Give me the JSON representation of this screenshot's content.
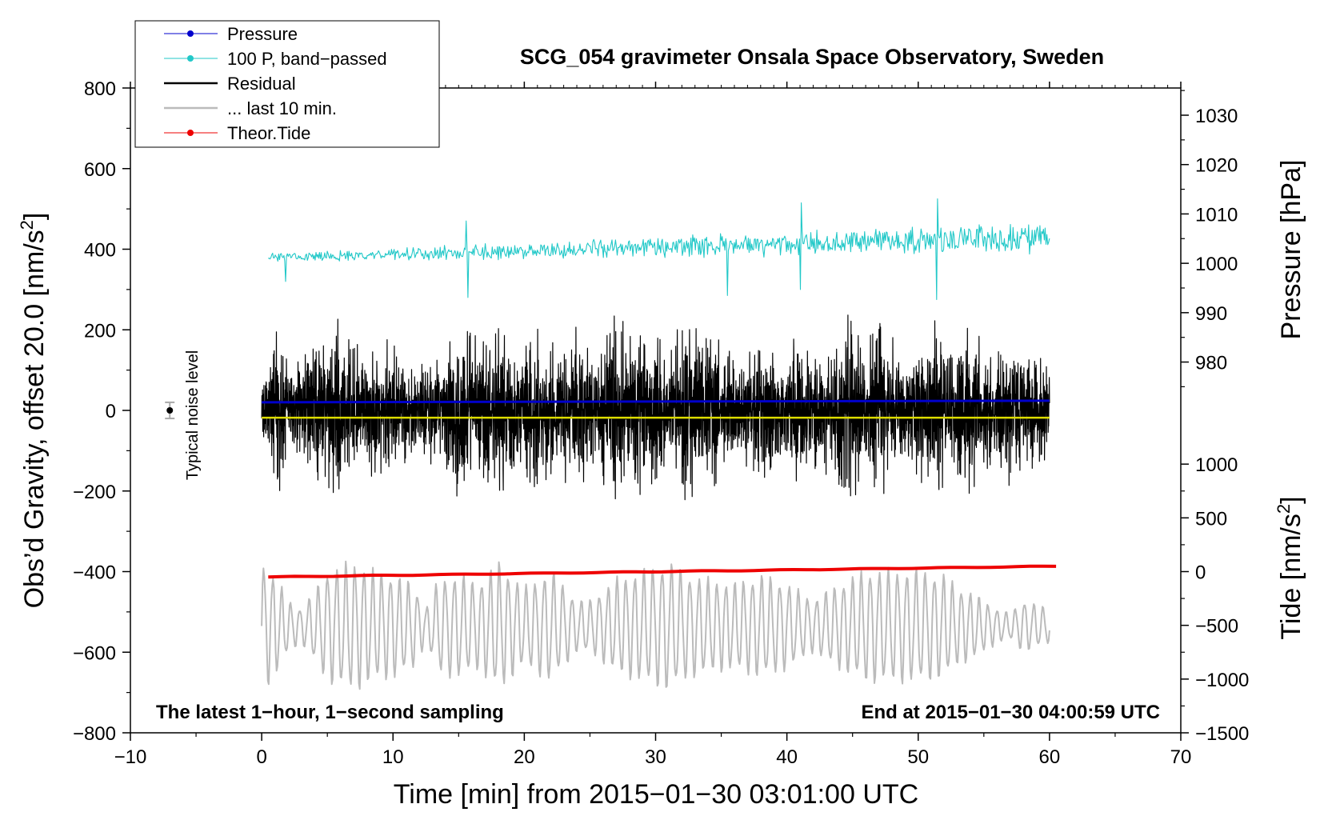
{
  "chart_data": {
    "type": "line",
    "title": "SCG_054 gravimeter Onsala Space Observatory, Sweden",
    "xlabel": "Time [min] from 2015−01−30 03:01:00 UTC",
    "ylabel_left": "Obs’d Gravity, offset 20.0 [nm/s",
    "ylabel_left_sup": "2",
    "ylabel_left_end": "]",
    "ylabel_pressure": "Pressure [hPa]",
    "ylabel_tide": "Tide [nm/s",
    "ylabel_tide_sup": "2",
    "ylabel_tide_end": "]",
    "xlim": [
      -10,
      70
    ],
    "ylim": [
      -800,
      800
    ],
    "x_ticks": [
      -10,
      0,
      10,
      20,
      30,
      40,
      50,
      60,
      70
    ],
    "x_tick_labels": [
      "−10",
      "0",
      "10",
      "20",
      "30",
      "40",
      "50",
      "60",
      "70"
    ],
    "y_ticks": [
      -800,
      -600,
      -400,
      -200,
      0,
      200,
      400,
      600,
      800
    ],
    "y_tick_labels": [
      "−800",
      "−600",
      "−400",
      "−200",
      "0",
      "200",
      "400",
      "600",
      "800"
    ],
    "pressure_ticks": [
      980,
      990,
      1000,
      1010,
      1020,
      1030
    ],
    "pressure_tick_labels": [
      "980",
      "990",
      "1000",
      "1010",
      "1020",
      "1030"
    ],
    "pressure_axis_gravity_equiv": {
      "p1000_at": 365,
      "per_hpa": 12.25
    },
    "tide_ticks": [
      -1500,
      -1000,
      -500,
      0,
      500,
      1000
    ],
    "tide_tick_labels": [
      "−1500",
      "−1000",
      "−500",
      "0",
      "500",
      "1000"
    ],
    "tide_axis_gravity_equiv": {
      "zero_at": -400,
      "per_unit": 0.2667
    },
    "annotations": {
      "bottom_left": "The latest 1−hour, 1−second sampling",
      "bottom_right": "End at 2015−01−30 04:00:59 UTC",
      "noise_label": "Typical noise level"
    },
    "noise_bar": {
      "x": -7,
      "y": 0,
      "err": 20
    },
    "legend": {
      "position": "top-left",
      "entries": [
        {
          "label": "Pressure",
          "color": "#0000cc",
          "marker": true
        },
        {
          "label": "100 P, band−passed",
          "color": "#22c8c8",
          "marker": true
        },
        {
          "label": "Residual",
          "color": "#000000",
          "marker": false
        },
        {
          "label": "... last 10 min.",
          "color": "#bbbbbb",
          "marker": false
        },
        {
          "label": "Theor.Tide",
          "color": "#ee0000",
          "marker": true
        }
      ]
    },
    "series": [
      {
        "name": "Pressure",
        "color": "#0000cc",
        "x_range": [
          0,
          60
        ],
        "y_start": 20,
        "y_end": 24
      },
      {
        "name": "Residual mean",
        "color": "#dddd00",
        "x_range": [
          0,
          60
        ],
        "y_start": -18,
        "y_end": -18
      },
      {
        "name": "100 P, band−passed",
        "color": "#22c8c8",
        "x_range": [
          0.5,
          60
        ],
        "baseline_start": 380,
        "baseline_end": 430,
        "amplitude_start": 12,
        "amplitude_end": 45,
        "spikes": [
          {
            "x": 15.7,
            "y": 280
          },
          {
            "x": 15.6,
            "y": 470
          },
          {
            "x": 35.5,
            "y": 285
          },
          {
            "x": 41.1,
            "y": 515
          },
          {
            "x": 41.0,
            "y": 300
          },
          {
            "x": 51.4,
            "y": 275
          },
          {
            "x": 51.5,
            "y": 525
          },
          {
            "x": 1.8,
            "y": 320
          }
        ]
      },
      {
        "name": "Residual",
        "color": "#000000",
        "x_range": [
          0,
          60
        ],
        "center": 0,
        "envelope_x": [
          0,
          1.1,
          1.5,
          2.5,
          3.5,
          5,
          6.2,
          7.5,
          9,
          10.5,
          12,
          13.5,
          15,
          16.5,
          18,
          19.5,
          21,
          22.5,
          24,
          25.5,
          26.8,
          28,
          29.5,
          31,
          32.2,
          33.5,
          35,
          36.5,
          38,
          39.5,
          41,
          42.5,
          44,
          44.9,
          46,
          46.8,
          48,
          49.5,
          51,
          52.5,
          54,
          55.5,
          57,
          58.5,
          60
        ],
        "envelope_y": [
          80,
          230,
          210,
          120,
          180,
          230,
          250,
          150,
          190,
          160,
          110,
          150,
          240,
          190,
          230,
          150,
          230,
          160,
          220,
          130,
          270,
          200,
          240,
          140,
          270,
          230,
          200,
          120,
          220,
          130,
          200,
          150,
          190,
          280,
          150,
          260,
          190,
          140,
          240,
          180,
          230,
          150,
          200,
          160,
          120
        ]
      },
      {
        "name": "Theor.Tide",
        "color": "#ee0000",
        "x_range": [
          0.5,
          60.5
        ],
        "tide_start": -50,
        "tide_end": 50
      },
      {
        "name": "... last 10 min.",
        "color": "#bbbbbb",
        "x_range": [
          0,
          60
        ],
        "center": -535,
        "envelope_x": [
          0,
          1,
          2,
          3,
          4,
          5,
          6,
          7,
          8.5,
          10,
          11.5,
          12.5,
          13.5,
          15,
          16.5,
          18,
          20,
          22,
          24,
          25,
          27,
          29,
          31,
          32.5,
          34,
          36,
          38,
          40,
          42,
          44,
          46,
          48,
          50,
          52,
          53,
          54,
          55,
          56,
          57,
          58,
          59,
          60
        ],
        "envelope_y": [
          150,
          120,
          60,
          40,
          80,
          130,
          140,
          150,
          130,
          120,
          100,
          40,
          110,
          120,
          100,
          150,
          90,
          130,
          60,
          60,
          110,
          130,
          150,
          120,
          110,
          100,
          120,
          100,
          60,
          100,
          130,
          130,
          130,
          120,
          90,
          80,
          60,
          40,
          30,
          60,
          50,
          40
        ]
      }
    ]
  }
}
